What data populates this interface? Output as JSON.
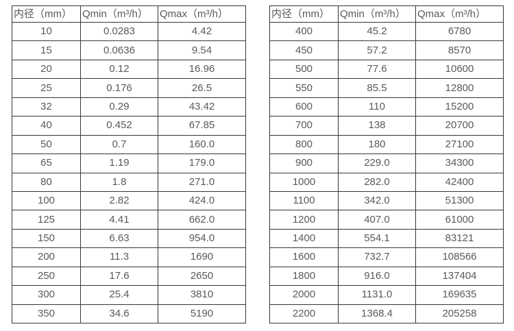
{
  "colors": {
    "text": "#58595b",
    "border": "#333538",
    "background": "#ffffff"
  },
  "tables": [
    {
      "name": "small-diameter-spec-table",
      "headers": [
        "内径（mm）",
        "Qmin（m³/h）",
        "Qmax（m³/h）"
      ],
      "rows": [
        [
          "10",
          "0.0283",
          "4.42"
        ],
        [
          "15",
          "0.0636",
          "9.54"
        ],
        [
          "20",
          "0.12",
          "16.96"
        ],
        [
          "25",
          "0.176",
          "26.5"
        ],
        [
          "32",
          "0.29",
          "43.42"
        ],
        [
          "40",
          "0.452",
          "67.85"
        ],
        [
          "50",
          "0.7",
          "160.0"
        ],
        [
          "65",
          "1.19",
          "179.0"
        ],
        [
          "80",
          "1.8",
          "271.0"
        ],
        [
          "100",
          "2.82",
          "424.0"
        ],
        [
          "125",
          "4.41",
          "662.0"
        ],
        [
          "150",
          "6.63",
          "954.0"
        ],
        [
          "200",
          "11.3",
          "1690"
        ],
        [
          "250",
          "17.6",
          "2650"
        ],
        [
          "300",
          "25.4",
          "3810"
        ],
        [
          "350",
          "34.6",
          "5190"
        ]
      ]
    },
    {
      "name": "large-diameter-spec-table",
      "headers": [
        "内径（mm）",
        "Qmin（m³/h）",
        "Qmax（m³/h）"
      ],
      "rows": [
        [
          "400",
          "45.2",
          "6780"
        ],
        [
          "450",
          "57.2",
          "8570"
        ],
        [
          "500",
          "77.6",
          "10600"
        ],
        [
          "550",
          "85.5",
          "12800"
        ],
        [
          "600",
          "110",
          "15200"
        ],
        [
          "700",
          "138",
          "20700"
        ],
        [
          "800",
          "180",
          "27100"
        ],
        [
          "900",
          "229.0",
          "34300"
        ],
        [
          "1000",
          "282.0",
          "42400"
        ],
        [
          "1100",
          "342.0",
          "51300"
        ],
        [
          "1200",
          "407.0",
          "61000"
        ],
        [
          "1400",
          "554.1",
          "83121"
        ],
        [
          "1600",
          "732.7",
          "108566"
        ],
        [
          "1800",
          "916.0",
          "137404"
        ],
        [
          "2000",
          "1131.0",
          "169635"
        ],
        [
          "2200",
          "1368.4",
          "205258"
        ]
      ]
    }
  ]
}
